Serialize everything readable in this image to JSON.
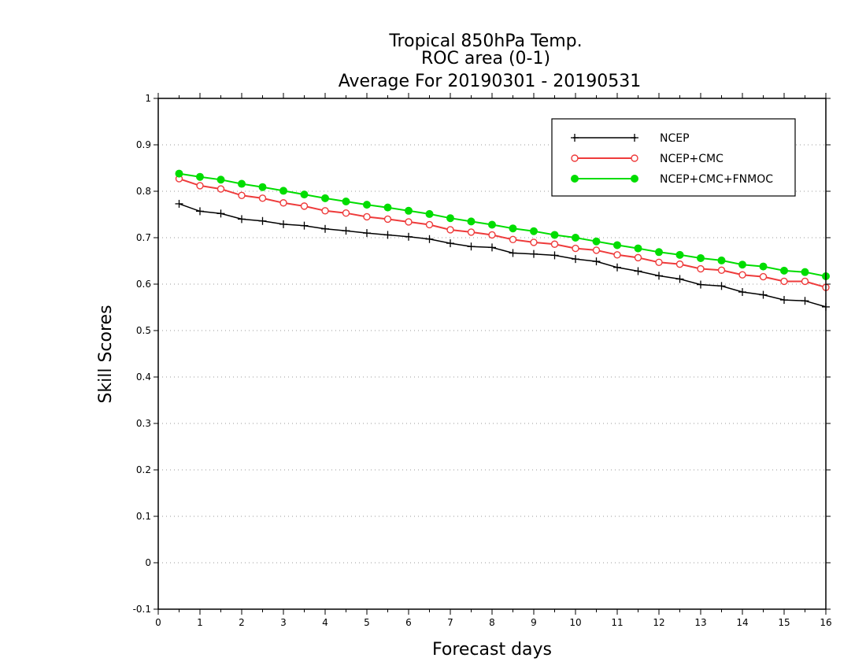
{
  "chart_data": {
    "type": "line",
    "title_lines": [
      "Tropical 850hPa Temp.",
      "ROC area (0-1)",
      "Average For 20190301 - 20190531"
    ],
    "xlabel": "Forecast days",
    "ylabel": "Skill Scores",
    "xlim": [
      0,
      16
    ],
    "ylim": [
      -0.1,
      1
    ],
    "x_ticks": [
      "0",
      "1",
      "2",
      "3",
      "4",
      "5",
      "6",
      "7",
      "8",
      "9",
      "10",
      "11",
      "12",
      "13",
      "14",
      "15",
      "16"
    ],
    "y_ticks": [
      "-0.1",
      "0",
      "0.1",
      "0.2",
      "0.3",
      "0.4",
      "0.5",
      "0.6",
      "0.7",
      "0.8",
      "0.9",
      "1"
    ],
    "grid": "horizontal dotted",
    "legend_position": "top-right",
    "x": [
      0.5,
      1,
      1.5,
      2,
      2.5,
      3,
      3.5,
      4,
      4.5,
      5,
      5.5,
      6,
      6.5,
      7,
      7.5,
      8,
      8.5,
      9,
      9.5,
      10,
      10.5,
      11,
      11.5,
      12,
      12.5,
      13,
      13.5,
      14,
      14.5,
      15,
      15.5,
      16
    ],
    "series": [
      {
        "name": "NCEP",
        "color": "#000000",
        "marker": "plus",
        "values": [
          0.773,
          0.757,
          0.752,
          0.74,
          0.736,
          0.729,
          0.726,
          0.719,
          0.715,
          0.71,
          0.706,
          0.702,
          0.697,
          0.688,
          0.681,
          0.679,
          0.667,
          0.665,
          0.662,
          0.654,
          0.649,
          0.636,
          0.628,
          0.618,
          0.611,
          0.599,
          0.596,
          0.583,
          0.577,
          0.566,
          0.564,
          0.551
        ]
      },
      {
        "name": "NCEP+CMC",
        "color": "#ee3b3b",
        "marker": "open-circle",
        "values": [
          0.827,
          0.812,
          0.805,
          0.791,
          0.785,
          0.775,
          0.768,
          0.758,
          0.753,
          0.745,
          0.74,
          0.734,
          0.728,
          0.717,
          0.712,
          0.706,
          0.696,
          0.69,
          0.686,
          0.677,
          0.673,
          0.663,
          0.657,
          0.647,
          0.643,
          0.633,
          0.63,
          0.62,
          0.616,
          0.606,
          0.606,
          0.593
        ]
      },
      {
        "name": "NCEP+CMC+FNMOC",
        "color": "#00dd00",
        "marker": "filled-circle",
        "values": [
          0.838,
          0.831,
          0.825,
          0.816,
          0.809,
          0.801,
          0.793,
          0.785,
          0.778,
          0.771,
          0.765,
          0.758,
          0.751,
          0.742,
          0.735,
          0.728,
          0.72,
          0.714,
          0.706,
          0.7,
          0.692,
          0.684,
          0.677,
          0.669,
          0.663,
          0.656,
          0.651,
          0.642,
          0.638,
          0.629,
          0.626,
          0.617
        ]
      }
    ]
  }
}
